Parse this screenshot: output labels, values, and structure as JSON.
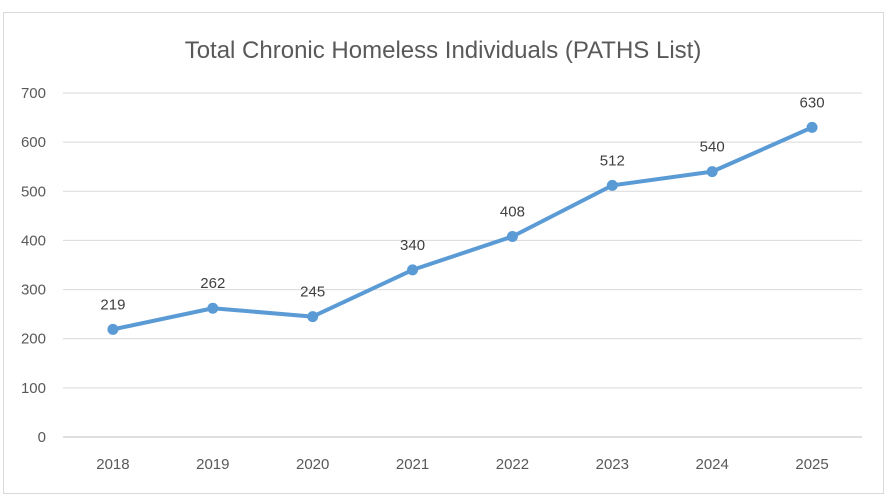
{
  "chart_data": {
    "type": "line",
    "title": "Total Chronic Homeless Individuals (PATHS List)",
    "categories": [
      "2018",
      "2019",
      "2020",
      "2021",
      "2022",
      "2023",
      "2024",
      "2025"
    ],
    "series": [
      {
        "values": [
          219,
          262,
          245,
          340,
          408,
          512,
          540,
          630
        ]
      }
    ],
    "data_labels": [
      "219",
      "262",
      "245",
      "340",
      "408",
      "512",
      "540",
      "630"
    ],
    "y_ticks": [
      "0",
      "100",
      "200",
      "300",
      "400",
      "500",
      "600",
      "700"
    ],
    "ylim": [
      0,
      700
    ],
    "grid": true,
    "legend": "none",
    "colors": {
      "series": "#5b9bd5",
      "grid": "#d9d9d9",
      "text": "#595959"
    }
  }
}
